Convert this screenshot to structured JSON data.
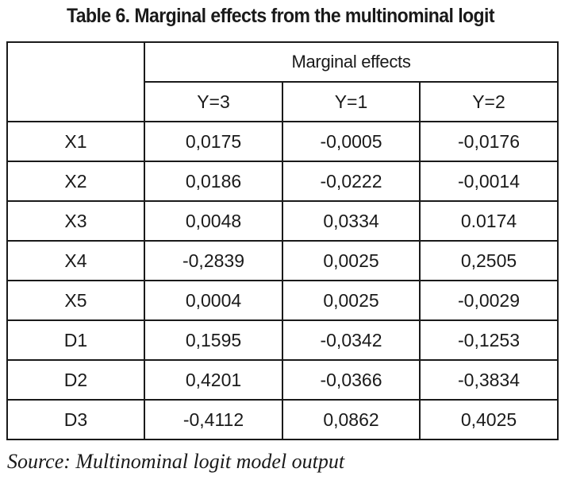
{
  "title": "Table 6. Marginal effects from the multinominal logit",
  "table": {
    "group_header": "Marginal effects",
    "columns": [
      "Y=3",
      "Y=1",
      "Y=2"
    ],
    "rows": [
      {
        "label": "X1",
        "values": [
          "0,0175",
          "-0,0005",
          "-0,0176"
        ]
      },
      {
        "label": "X2",
        "values": [
          "0,0186",
          "-0,0222",
          "-0,0014"
        ]
      },
      {
        "label": "X3",
        "values": [
          "0,0048",
          "0,0334",
          "0.0174"
        ]
      },
      {
        "label": "X4",
        "values": [
          "-0,2839",
          "0,0025",
          "0,2505"
        ]
      },
      {
        "label": "X5",
        "values": [
          "0,0004",
          "0,0025",
          "-0,0029"
        ]
      },
      {
        "label": "D1",
        "values": [
          "0,1595",
          "-0,0342",
          "-0,1253"
        ]
      },
      {
        "label": "D2",
        "values": [
          "0,4201",
          "-0,0366",
          "-0,3834"
        ]
      },
      {
        "label": "D3",
        "values": [
          "-0,4112",
          "0,0862",
          "0,4025"
        ]
      }
    ]
  },
  "source": "Source: Multinominal logit model output"
}
